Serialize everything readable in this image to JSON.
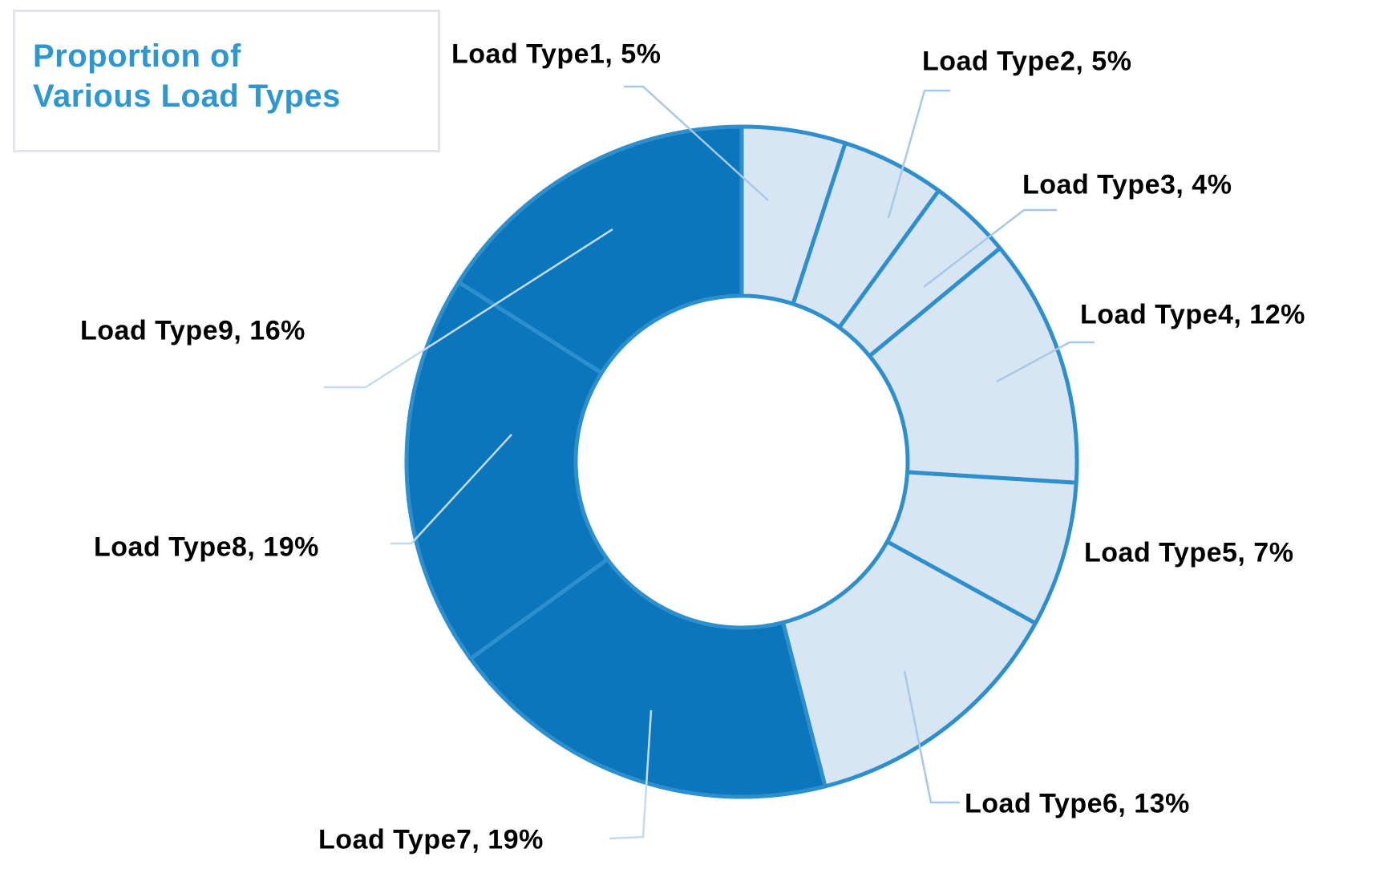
{
  "header": {
    "title": "Proportion of Various Load Types",
    "title_lines": [
      "Proportion of",
      "Various Load Types"
    ]
  },
  "colors": {
    "background": "#FFFFFF",
    "dark_slice": "#0B76BC",
    "light_slice": "#D8E6F3",
    "slice_border": "#2E8FCE",
    "leader_line": "#A7C9E9",
    "leader_line_on_dark": "#C4DCF0",
    "title_text": "#2E96D1",
    "label_text": "#000000",
    "title_box_border": "#E2E6EC"
  },
  "chart_data": {
    "type": "pie",
    "subtype": "donut",
    "title": "Proportion of Various Load Types",
    "unit": "%",
    "start_angle_deg": 0,
    "direction": "clockwise",
    "donut_hole_ratio": 0.5,
    "total": 100,
    "slices": [
      {
        "label": "Load Type1",
        "value": 5,
        "display": "Load Type1, 5%",
        "shade": "light"
      },
      {
        "label": "Load Type2",
        "value": 5,
        "display": "Load Type2, 5%",
        "shade": "light"
      },
      {
        "label": "Load Type3",
        "value": 4,
        "display": "Load Type3, 4%",
        "shade": "light"
      },
      {
        "label": "Load Type4",
        "value": 12,
        "display": "Load Type4, 12%",
        "shade": "light"
      },
      {
        "label": "Load Type5",
        "value": 7,
        "display": "Load Type5, 7%",
        "shade": "light"
      },
      {
        "label": "Load Type6",
        "value": 13,
        "display": "Load Type6, 13%",
        "shade": "light"
      },
      {
        "label": "Load Type7",
        "value": 19,
        "display": "Load Type7, 19%",
        "shade": "dark"
      },
      {
        "label": "Load Type8",
        "value": 19,
        "display": "Load Type8, 19%",
        "shade": "dark"
      },
      {
        "label": "Load Type9",
        "value": 16,
        "display": "Load Type9, 16%",
        "shade": "dark"
      }
    ],
    "legend": "none",
    "labels_position": "outside-with-leader-lines"
  }
}
